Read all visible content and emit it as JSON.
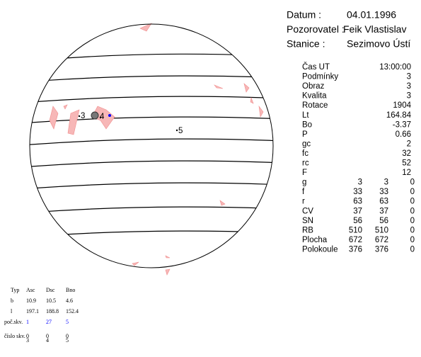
{
  "header": {
    "rows": [
      {
        "label": "Datum :",
        "value": "04.01.1996"
      },
      {
        "label": "Pozorovatel :",
        "value": "Feik Vlastislav"
      },
      {
        "label": "Stanice :",
        "value": "Sezimovo Ústí"
      }
    ]
  },
  "parameters": {
    "rows": [
      {
        "label": "Čas UT",
        "values": [
          "13:00:00"
        ]
      },
      {
        "label": "Podmínky",
        "values": [
          3
        ]
      },
      {
        "label": "Obraz",
        "values": [
          3
        ]
      },
      {
        "label": "Kvalita",
        "values": [
          3
        ]
      },
      {
        "label": "Rotace",
        "values": [
          1904
        ]
      },
      {
        "label": "Lt",
        "values": [
          164.84
        ]
      },
      {
        "label": "Bo",
        "values": [
          -3.37
        ]
      },
      {
        "label": "P",
        "values": [
          0.66
        ]
      },
      {
        "label": "gc",
        "values": [
          2
        ]
      },
      {
        "label": "fc",
        "values": [
          32
        ]
      },
      {
        "label": "rc",
        "values": [
          52
        ]
      },
      {
        "label": "F",
        "values": [
          12
        ]
      },
      {
        "label": "g",
        "values": [
          3,
          3,
          0
        ]
      },
      {
        "label": "f",
        "values": [
          33,
          33,
          0
        ]
      },
      {
        "label": "r",
        "values": [
          63,
          63,
          0
        ]
      },
      {
        "label": "CV",
        "values": [
          37,
          37,
          0
        ]
      },
      {
        "label": "SN",
        "values": [
          56,
          56,
          0
        ]
      },
      {
        "label": "RB",
        "values": [
          510,
          510,
          0
        ]
      },
      {
        "label": "Plocha",
        "values": [
          672,
          672,
          0
        ]
      },
      {
        "label": "Polokoule",
        "values": [
          376,
          376,
          0
        ]
      }
    ]
  },
  "disk": {
    "labels": [
      "3",
      "4",
      "5"
    ]
  },
  "summary": {
    "columns": [
      "Typ",
      "Asc",
      "Dsc",
      "Bno"
    ],
    "rows": [
      {
        "label": "b",
        "values": [
          10.9,
          10.5,
          4.6
        ]
      },
      {
        "label": "l",
        "values": [
          197.1,
          188.8,
          152.4
        ]
      },
      {
        "label": "poč.skv.",
        "values": [
          1,
          27,
          5
        ]
      },
      {
        "label": "číslo skv.",
        "values": [
          0,
          0,
          0
        ]
      }
    ],
    "numbers": [
      3,
      4,
      5
    ]
  }
}
